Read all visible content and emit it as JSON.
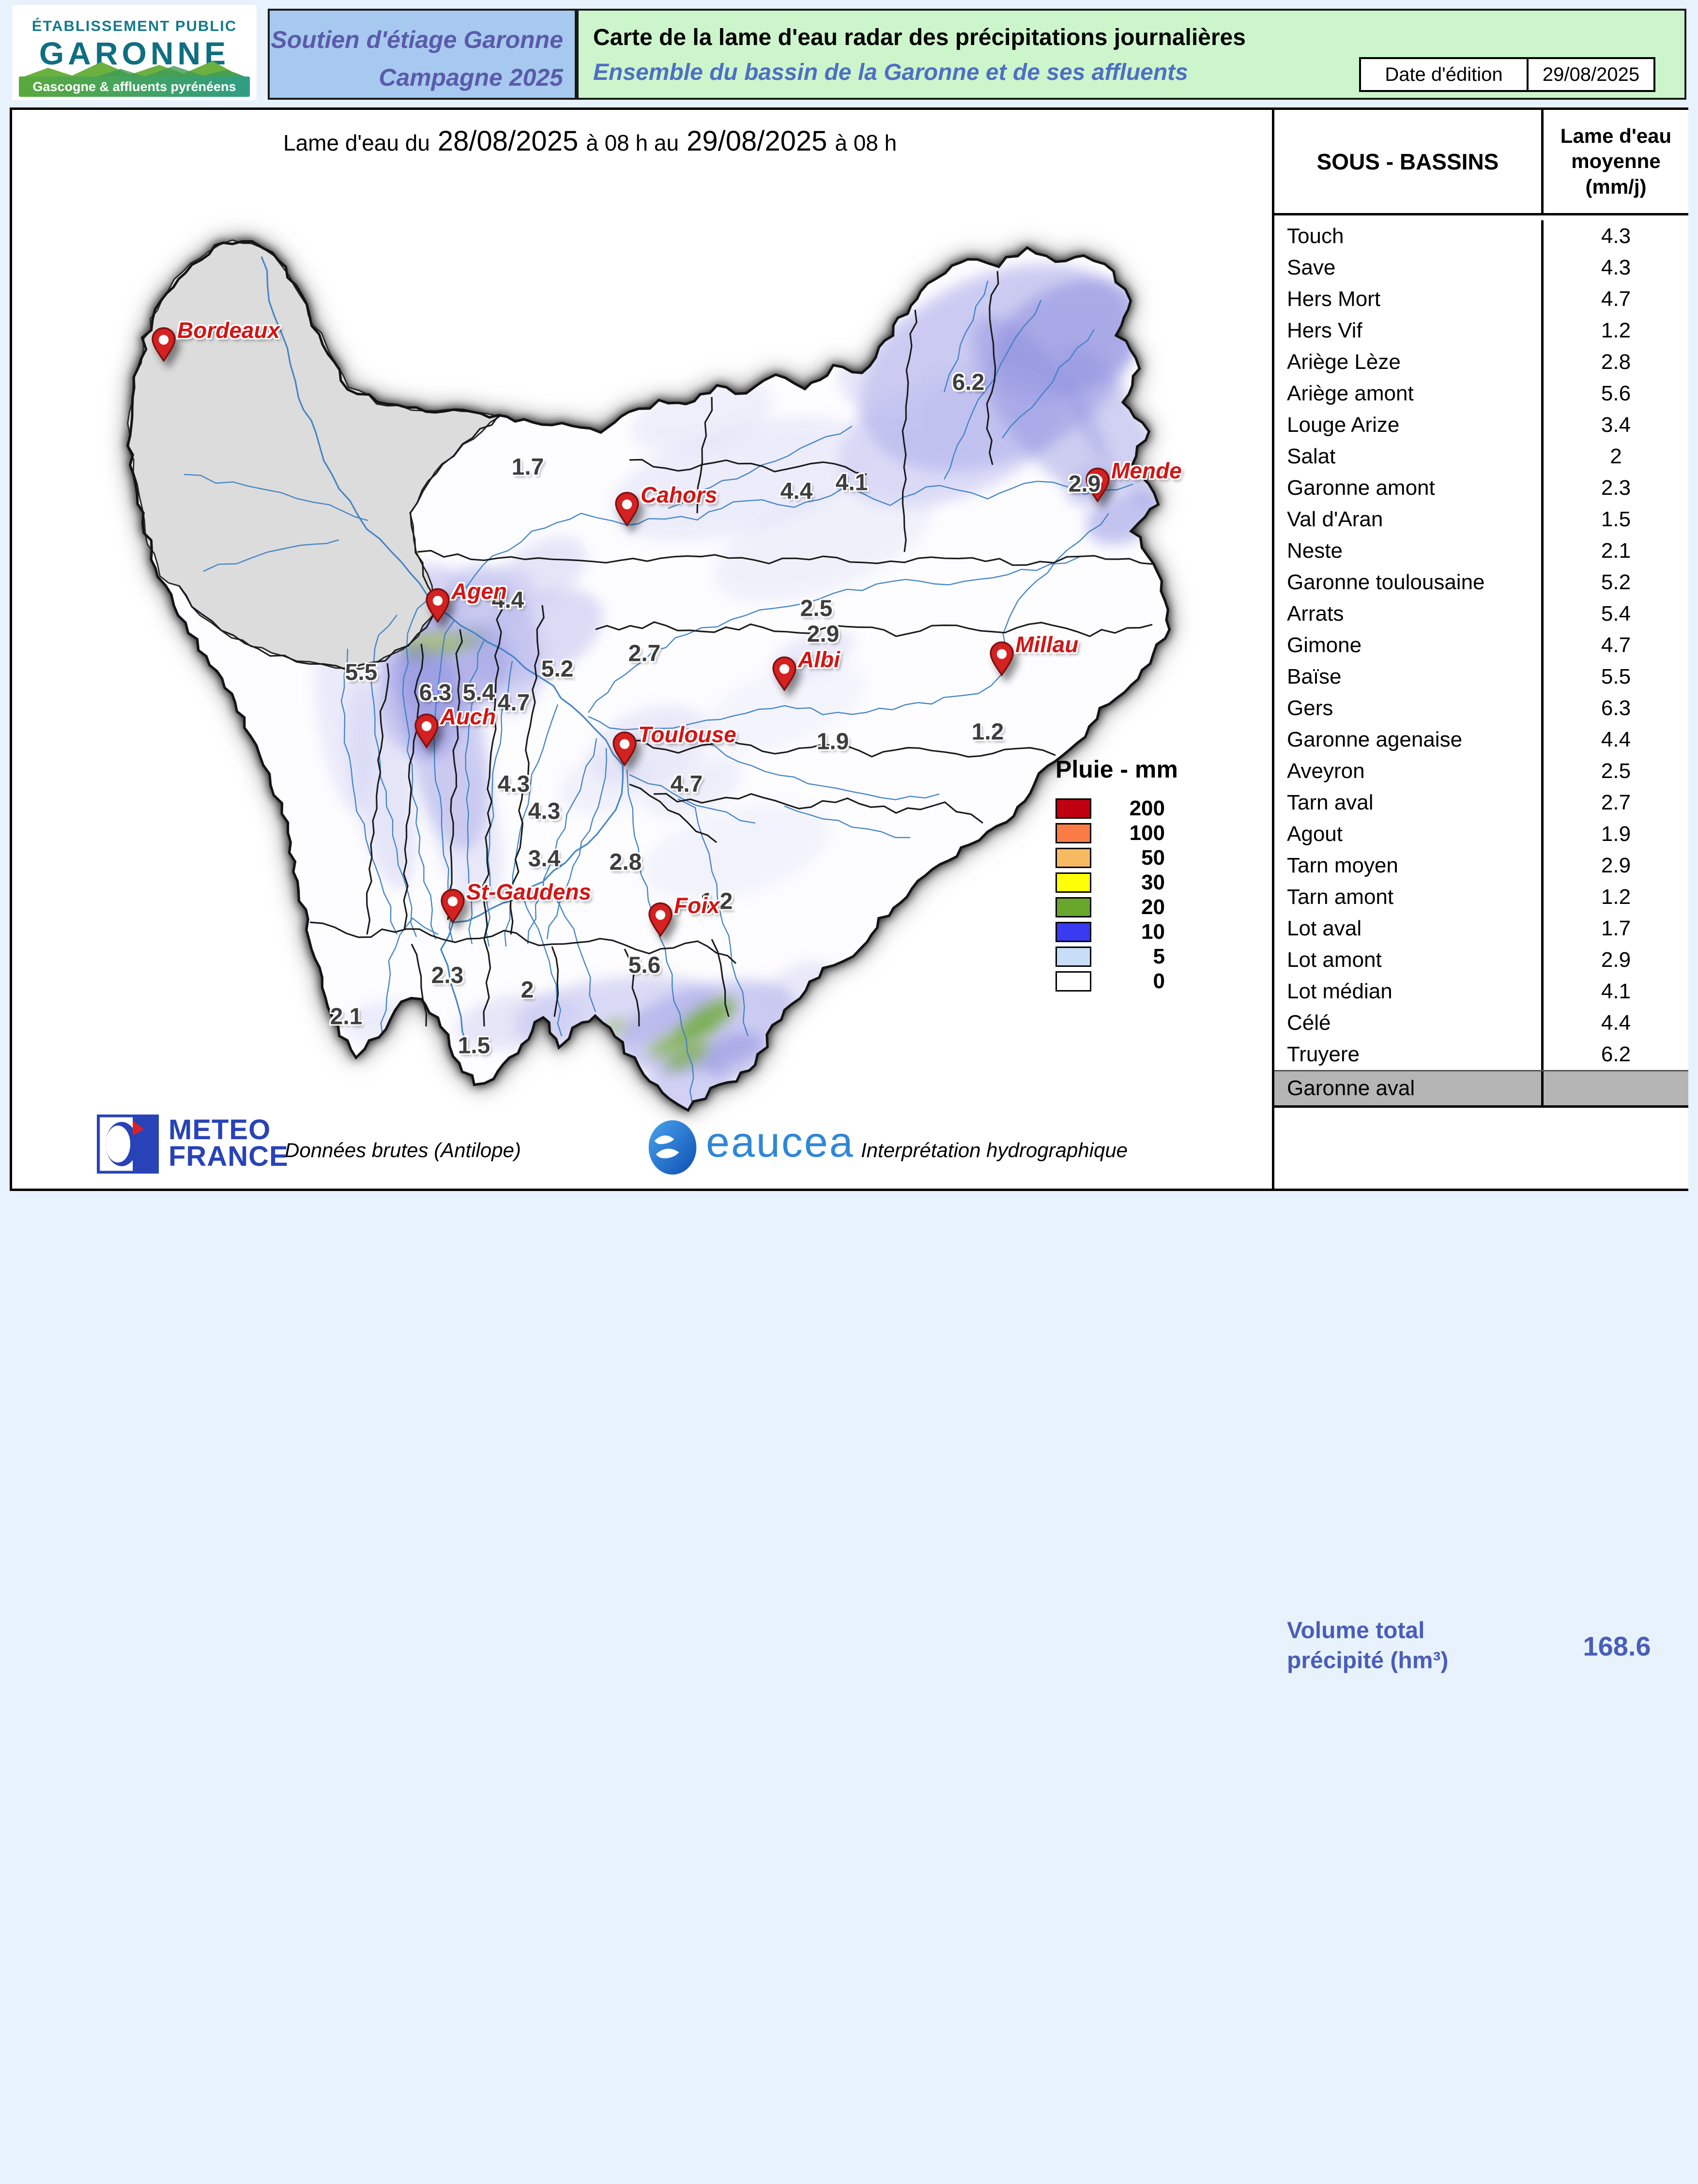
{
  "header": {
    "org_logo": {
      "line1": "ÉTABLISSEMENT PUBLIC",
      "line2": "GARONNE",
      "line3": "Gascogne & affluents pyrénéens"
    },
    "campaign": {
      "line1": "Soutien d'étiage Garonne",
      "line2": "Campagne 2025"
    },
    "title": "Carte de la lame d'eau radar des précipitations journalières",
    "subtitle": "Ensemble du bassin de la Garonne et de ses affluents",
    "edition_label": "Date d'édition",
    "edition_date": "29/08/2025"
  },
  "map": {
    "title_prefix": "Lame d'eau du",
    "date_start": "28/08/2025",
    "title_mid": "à 08 h au",
    "date_end": "29/08/2025",
    "title_suffix": "à 08 h",
    "cities": [
      "Bordeaux",
      "Cahors",
      "Agen",
      "Mende",
      "Millau",
      "Albi",
      "Auch",
      "Toulouse",
      "St-Gaudens",
      "Foix"
    ]
  },
  "legend": {
    "title": "Pluie - mm",
    "entries": [
      {
        "label": "200",
        "color": "#c00010"
      },
      {
        "label": "100",
        "color": "#fa7c44"
      },
      {
        "label": "50",
        "color": "#f6ba62"
      },
      {
        "label": "30",
        "color": "#ffff05"
      },
      {
        "label": "20",
        "color": "#68a72c"
      },
      {
        "label": "10",
        "color": "#3a3af0"
      },
      {
        "label": "5",
        "color": "#c8ddf8"
      },
      {
        "label": "0",
        "color": "#ffffff"
      }
    ]
  },
  "chart_data": {
    "type": "heatmap",
    "title": "Lame d'eau du 28/08/2025 à 08 h au 29/08/2025 à 08 h",
    "unit": "mm/j",
    "regions": [
      {
        "name": "Touch",
        "value": "4.3"
      },
      {
        "name": "Save",
        "value": "4.3"
      },
      {
        "name": "Hers Mort",
        "value": "4.7"
      },
      {
        "name": "Hers Vif",
        "value": "1.2"
      },
      {
        "name": "Ariège Lèze",
        "value": "2.8"
      },
      {
        "name": "Ariège amont",
        "value": "5.6"
      },
      {
        "name": "Louge Arize",
        "value": "3.4"
      },
      {
        "name": "Salat",
        "value": "2"
      },
      {
        "name": "Garonne amont",
        "value": "2.3"
      },
      {
        "name": "Val d'Aran",
        "value": "1.5"
      },
      {
        "name": "Neste",
        "value": "2.1"
      },
      {
        "name": "Garonne toulousaine",
        "value": "5.2"
      },
      {
        "name": "Arrats",
        "value": "5.4"
      },
      {
        "name": "Gimone",
        "value": "4.7"
      },
      {
        "name": "Baïse",
        "value": "5.5"
      },
      {
        "name": "Gers",
        "value": "6.3"
      },
      {
        "name": "Garonne agenaise",
        "value": "4.4"
      },
      {
        "name": "Aveyron",
        "value": "2.5"
      },
      {
        "name": "Tarn aval",
        "value": "2.7"
      },
      {
        "name": "Agout",
        "value": "1.9"
      },
      {
        "name": "Tarn moyen",
        "value": "2.9"
      },
      {
        "name": "Tarn amont",
        "value": "1.2"
      },
      {
        "name": "Lot aval",
        "value": "1.7"
      },
      {
        "name": "Lot amont",
        "value": "2.9"
      },
      {
        "name": "Lot médian",
        "value": "4.1"
      },
      {
        "name": "Célé",
        "value": "4.4"
      },
      {
        "name": "Truyere",
        "value": "6.2"
      }
    ]
  },
  "table": {
    "col1": "SOUS - BASSINS",
    "col2": "Lame d'eau\nmoyenne\n(mm/j)",
    "no_data_row": "Garonne aval",
    "total_label": "Volume total\nprécipité (hm³)",
    "total_value": "168.6"
  },
  "footer": {
    "meteo_line1": "METEO",
    "meteo_line2": "FRANCE",
    "meteo_caption": "Données brutes (Antilope)",
    "eaucea_word": "eaucea",
    "eaucea_caption": "Interprétation hydrographique"
  }
}
